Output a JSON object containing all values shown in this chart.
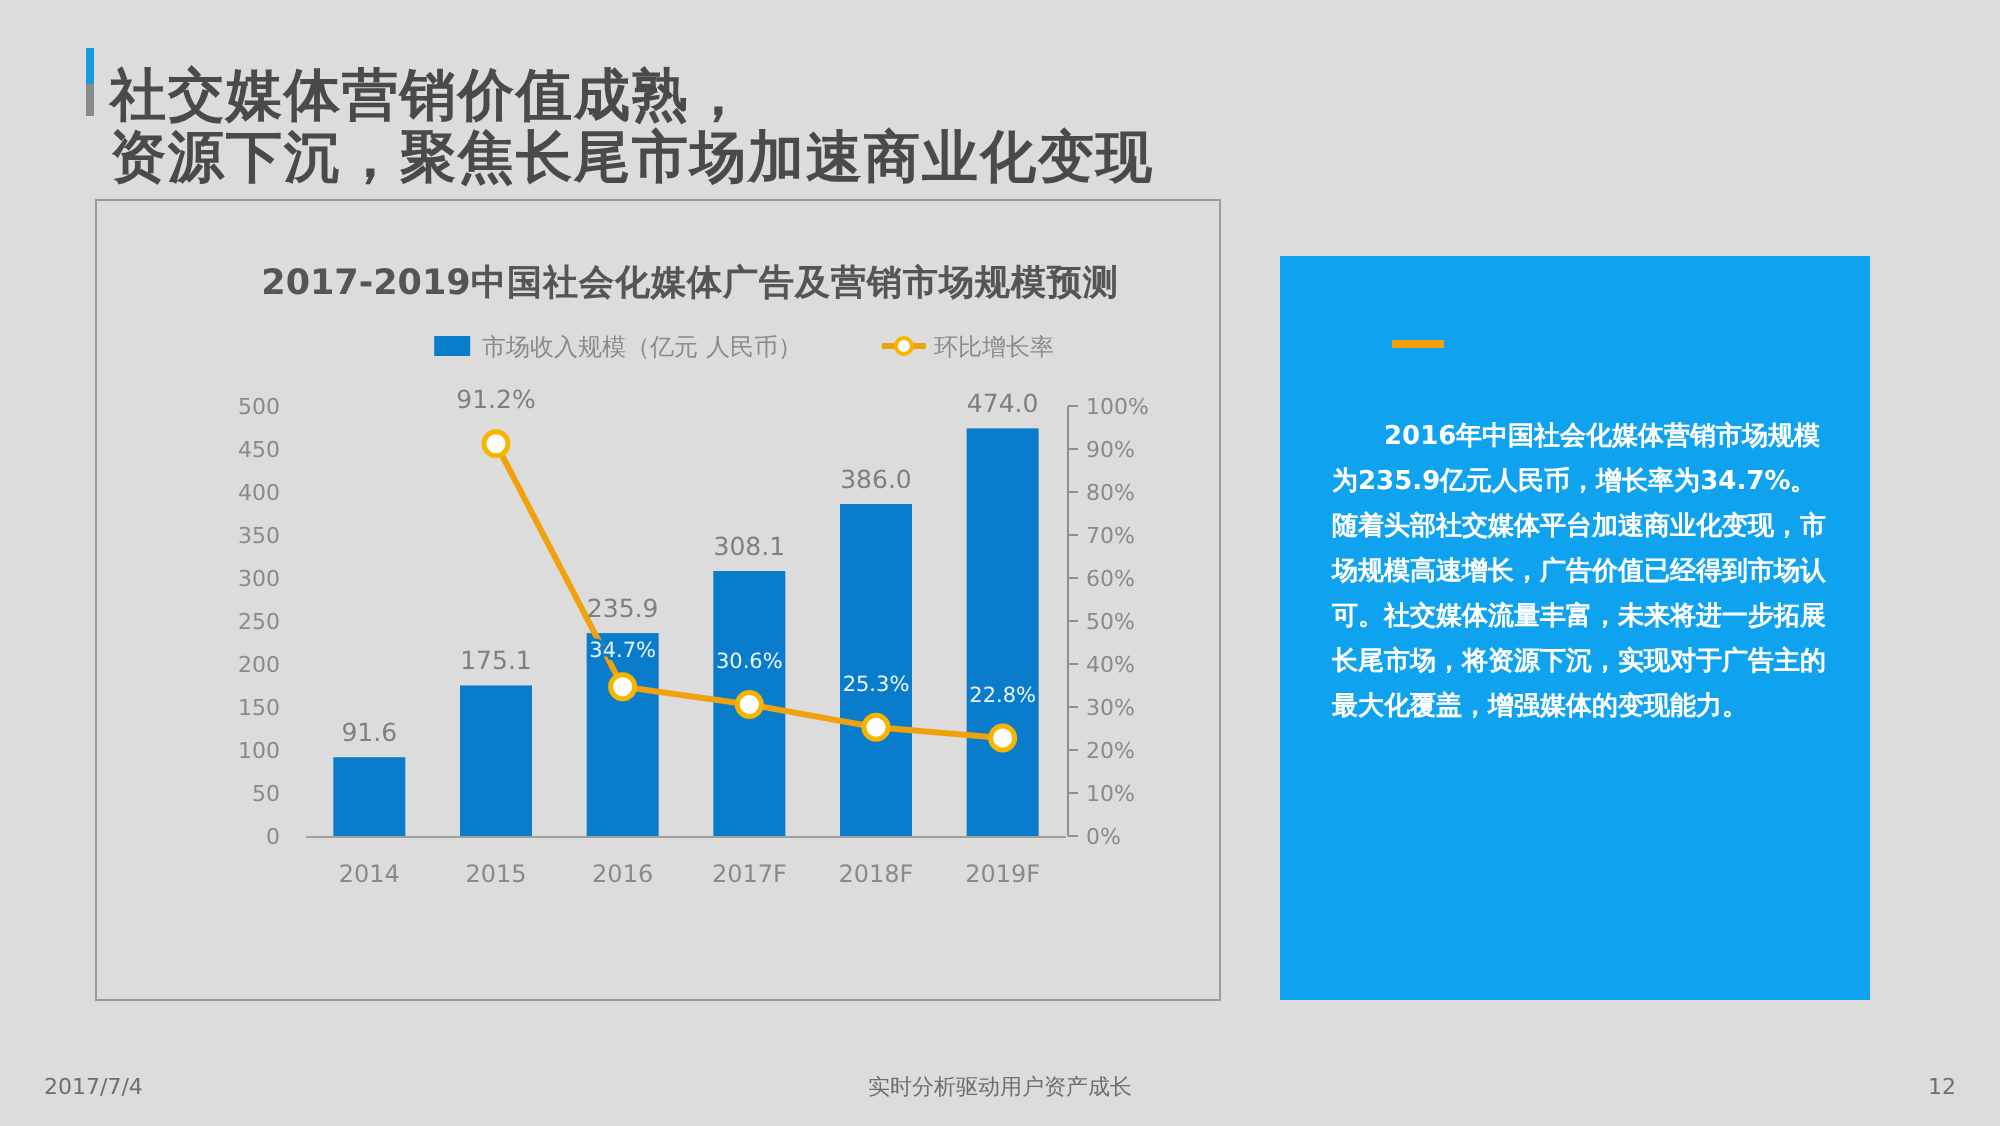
{
  "chart_data": [
    {
      "type": "bar",
      "title": "2017-2019中国社会化媒体广告及营销市场规模预测",
      "categories": [
        "2014",
        "2015",
        "2016",
        "2017F",
        "2018F",
        "2019F"
      ],
      "series": [
        {
          "name": "市场收入规模（亿元 人民币）",
          "type": "bar",
          "color": "#0a7ccc",
          "values": [
            91.6,
            175.1,
            235.9,
            308.1,
            386.0,
            474.0
          ],
          "value_labels": [
            "91.6",
            "175.1",
            "235.9",
            "308.1",
            "386.0",
            "474.0"
          ]
        },
        {
          "name": "环比增长率",
          "type": "line",
          "axis": "y2",
          "color": "#f0a20c",
          "marker": "circle",
          "values": [
            null,
            91.2,
            34.7,
            30.6,
            25.3,
            22.8
          ],
          "value_labels": [
            null,
            "91.2%",
            "34.7%",
            "30.6%",
            "25.3%",
            "22.8%"
          ]
        }
      ],
      "ylim": [
        0,
        500
      ],
      "yticks": [
        0,
        50,
        100,
        150,
        200,
        250,
        300,
        350,
        400,
        450,
        500
      ],
      "y2lim": [
        0,
        100
      ],
      "y2ticks": [
        {
          "value": 0,
          "label": "0%"
        },
        {
          "value": 10,
          "label": "10%"
        },
        {
          "value": 20,
          "label": "20%"
        },
        {
          "value": 30,
          "label": "30%"
        },
        {
          "value": 40,
          "label": "40%"
        },
        {
          "value": 50,
          "label": "50%"
        },
        {
          "value": 60,
          "label": "60%"
        },
        {
          "value": 70,
          "label": "70%"
        },
        {
          "value": 80,
          "label": "80%"
        },
        {
          "value": 90,
          "label": "90%"
        },
        {
          "value": 100,
          "label": "100%"
        }
      ],
      "legend": "top",
      "annotations": [
        "社交媒体营销价值成熟，",
        "资源下沉，聚焦长尾市场加速商业化变现",
        "2017/7/4",
        "实时分析驱动用户资产成长",
        "12"
      ]
    },
    {
      "type": "other",
      "annotations": [
        "2016年中国社会化媒体营销市场规模为235.9亿元人民币，增长率为34.7%。随着头部社交媒体平台加速商业化变现，市场规模高速增长，广告价值已经得到市场认可。社交媒体流量丰富，未来将进一步拓展长尾市场，将资源下沉，实现对于广告主的最大化覆盖，增强媒体的变现能力。"
      ]
    }
  ]
}
